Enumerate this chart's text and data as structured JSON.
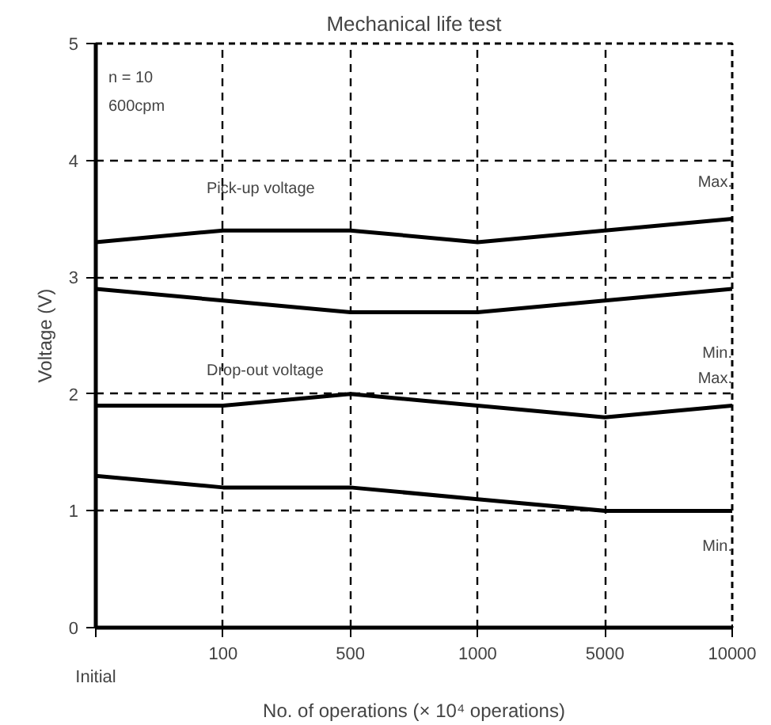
{
  "chart_data": {
    "type": "line",
    "title": "Mechanical life test",
    "xlabel": "No. of operations (× 10⁴ operations)",
    "ylabel": "Voltage (V)",
    "categories": [
      "Initial",
      "100",
      "500",
      "1000",
      "5000",
      "10000"
    ],
    "series": [
      {
        "color": "#000000",
        "values": [
          3.3,
          3.4,
          3.4,
          3.3,
          3.4,
          3.5
        ]
      },
      {
        "color": "#000000",
        "values": [
          2.9,
          2.8,
          2.7,
          2.7,
          2.8,
          2.9
        ]
      },
      {
        "color": "#000000",
        "values": [
          1.9,
          1.9,
          2.0,
          1.9,
          1.8,
          1.9
        ]
      },
      {
        "color": "#000000",
        "values": [
          1.3,
          1.2,
          1.2,
          1.1,
          1.0,
          1.0
        ]
      }
    ],
    "ylim": [
      0,
      5
    ],
    "yticks": [
      0,
      1,
      2,
      3,
      4,
      5
    ],
    "grid": true,
    "marker": "none",
    "line_style": "solid",
    "annotations": [
      "n = 10",
      "600cpm",
      "Pick-up voltage",
      "Max.",
      "Min.",
      "Drop-out voltage",
      "Max.",
      "Min."
    ]
  }
}
